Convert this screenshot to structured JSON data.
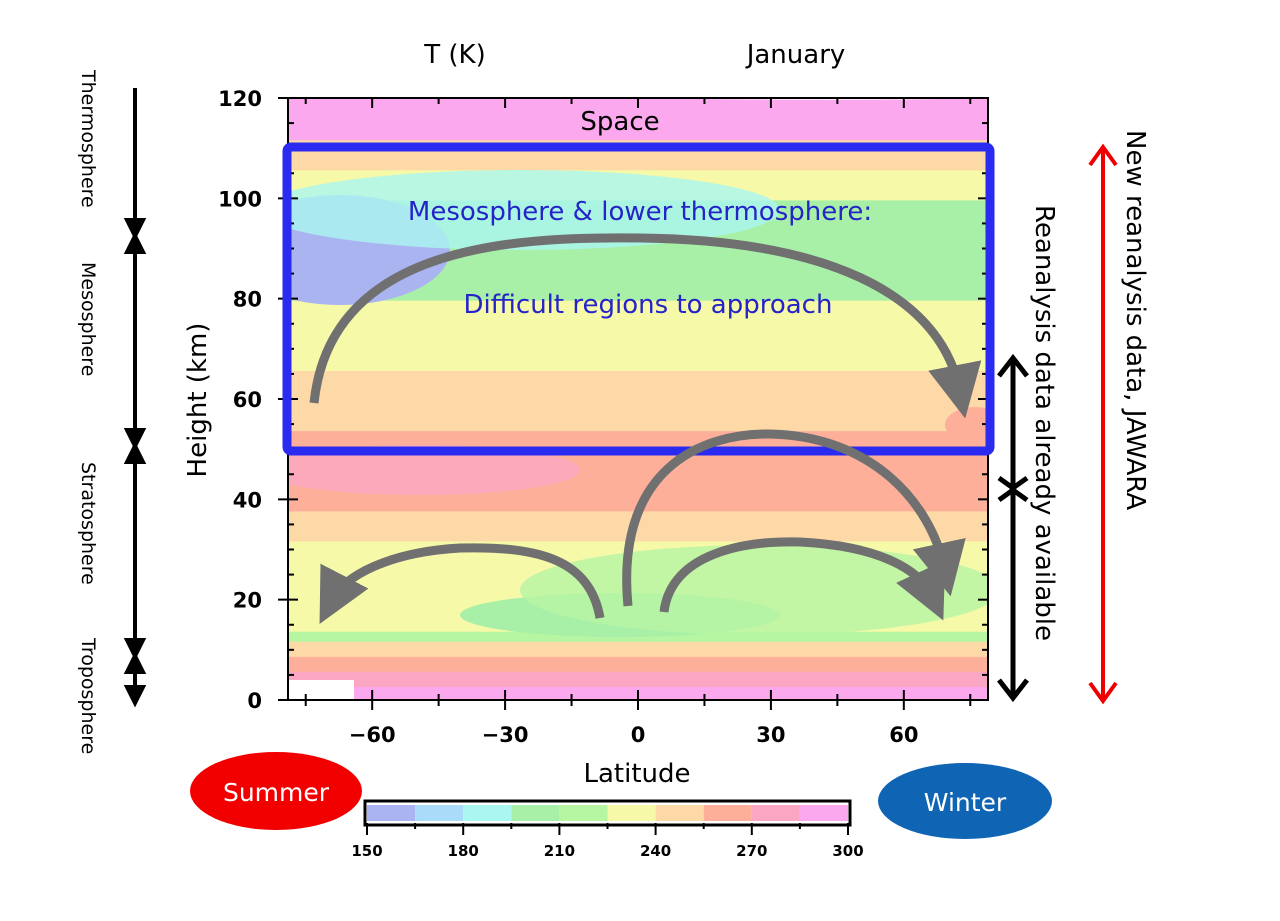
{
  "chart_data": {
    "type": "heatmap",
    "title_left": "T (K)",
    "title_right": "January",
    "xlabel": "Latitude",
    "ylabel": "Height (km)",
    "xlim": [
      -79,
      79
    ],
    "ylim": [
      0,
      120
    ],
    "xticks": [
      -60,
      -30,
      0,
      30,
      60
    ],
    "xtick_labels": [
      "−60",
      "−30",
      "0",
      "30",
      "60"
    ],
    "yticks": [
      0,
      20,
      40,
      60,
      80,
      100,
      120
    ],
    "ytick_labels": [
      "0",
      "20",
      "40",
      "60",
      "80",
      "100",
      "120"
    ],
    "colorbar": {
      "range": [
        150,
        300
      ],
      "step": 15,
      "tick_labels": [
        "150",
        "180",
        "210",
        "240",
        "270",
        "300"
      ],
      "colors": [
        "#aab4f0",
        "#a8dcf8",
        "#aaf6f0",
        "#a8f0a8",
        "#b6f5a2",
        "#f5f9a8",
        "#fed9a8",
        "#fdaf9a",
        "#fba7c4",
        "#fba8ee"
      ]
    },
    "temperature_bands_km": [
      {
        "from": 0,
        "to": 3,
        "value": 285
      },
      {
        "from": 3,
        "to": 6,
        "value": 270
      },
      {
        "from": 6,
        "to": 9,
        "value": 255
      },
      {
        "from": 9,
        "to": 12,
        "value": 240
      },
      {
        "from": 12,
        "to": 14,
        "value": 210
      },
      {
        "from": 14,
        "to": 32,
        "value": 225
      },
      {
        "from": 32,
        "to": 38,
        "value": 240
      },
      {
        "from": 38,
        "to": 48,
        "value": 255
      },
      {
        "from": 48,
        "to": 54,
        "value": 255
      },
      {
        "from": 54,
        "to": 66,
        "value": 240
      },
      {
        "from": 66,
        "to": 80,
        "value": 225
      },
      {
        "from": 80,
        "to": 100,
        "value": 195
      },
      {
        "from": 100,
        "to": 106,
        "value": 225
      },
      {
        "from": 106,
        "to": 112,
        "value": 240
      },
      {
        "from": 112,
        "to": 120,
        "value": 285
      }
    ]
  },
  "annotations": {
    "space": "Space",
    "box_line1": "Mesosphere & lower thermosphere:",
    "box_line2": "Difficult regions to approach",
    "new_reanalysis": "New reanalysis data, JAWARA",
    "existing_reanalysis": "Reanalysis data already available",
    "summer": "Summer",
    "winter": "Winter",
    "layers": [
      "Thermosphere",
      "Mesosphere",
      "Stratosphere",
      "Troposphere"
    ]
  },
  "colors": {
    "box": "#2a2af0",
    "summer": "#f20000",
    "winter": "#0f64b4",
    "circulation_arrows": "#707070",
    "jawara_arrow": "#ee0000"
  }
}
